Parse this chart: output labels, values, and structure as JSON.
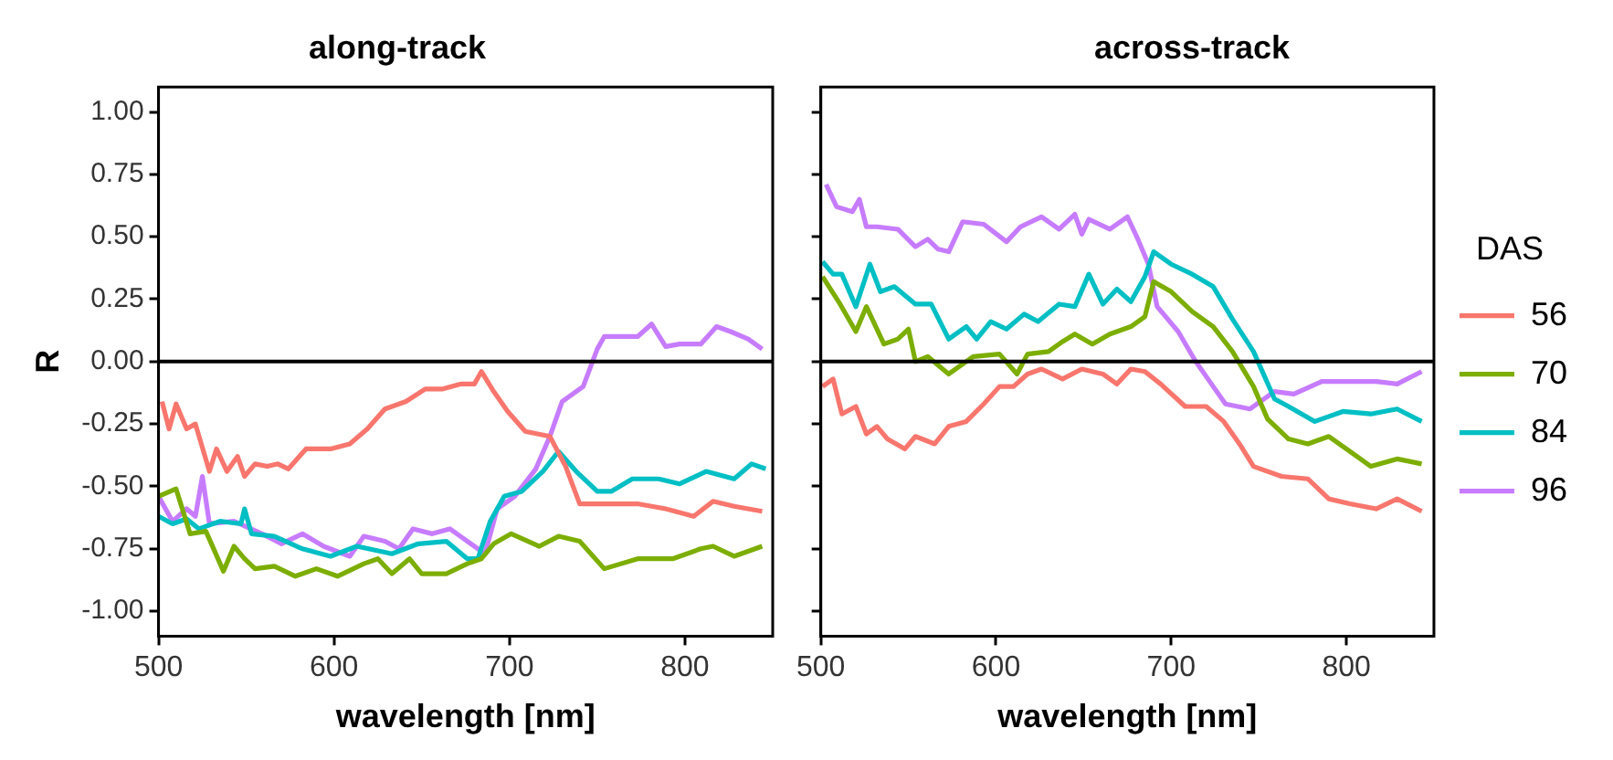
{
  "chart_data": [
    {
      "type": "line",
      "title": "along-track",
      "xlabel": "wavelength [nm]",
      "ylabel": "R",
      "xlim": [
        500,
        850
      ],
      "ylim": [
        -1.1,
        1.1
      ],
      "xticks": [
        500,
        600,
        700,
        800
      ],
      "yticks": [
        {
          "value": 1,
          "label": "1.00"
        },
        {
          "value": 0.75,
          "label": "0.75"
        },
        {
          "value": 0.5,
          "label": "0.50"
        },
        {
          "value": 0.25,
          "label": "0.25"
        },
        {
          "value": 0,
          "label": "0.00"
        },
        {
          "value": -0.25,
          "label": "-0.25"
        },
        {
          "value": -0.5,
          "label": "-0.50"
        },
        {
          "value": -0.75,
          "label": "-0.75"
        },
        {
          "value": -1,
          "label": "-1.00"
        }
      ],
      "grid": false,
      "legend": false,
      "line_style": "solid",
      "marker": "none",
      "ref_lines": [
        {
          "axis": "y",
          "value": 0,
          "color": "#000000"
        }
      ],
      "series": [
        {
          "color": "#f8766d",
          "x": [
            502,
            506,
            510,
            516,
            521,
            529,
            533,
            539,
            545,
            549,
            555,
            562,
            568,
            574,
            584,
            598,
            609,
            619,
            629,
            641,
            652,
            662,
            672,
            680,
            684,
            691,
            699,
            709,
            723,
            732,
            740,
            754,
            773,
            789,
            805,
            816,
            828,
            844
          ],
          "values": [
            -0.16,
            -0.27,
            -0.17,
            -0.27,
            -0.25,
            -0.44,
            -0.35,
            -0.44,
            -0.38,
            -0.46,
            -0.41,
            -0.42,
            -0.41,
            -0.43,
            -0.35,
            -0.35,
            -0.33,
            -0.27,
            -0.19,
            -0.16,
            -0.11,
            -0.11,
            -0.09,
            -0.09,
            -0.04,
            -0.12,
            -0.2,
            -0.28,
            -0.3,
            -0.42,
            -0.57,
            -0.57,
            -0.57,
            -0.59,
            -0.62,
            -0.56,
            -0.58,
            -0.6
          ]
        },
        {
          "color": "#7cae00",
          "x": [
            500,
            510,
            518,
            527,
            537,
            543,
            549,
            555,
            566,
            578,
            590,
            602,
            617,
            625,
            633,
            643,
            650,
            664,
            676,
            684,
            691,
            701,
            717,
            728,
            740,
            754,
            773,
            793,
            809,
            816,
            828,
            844
          ],
          "values": [
            -0.54,
            -0.51,
            -0.69,
            -0.68,
            -0.84,
            -0.74,
            -0.79,
            -0.83,
            -0.82,
            -0.86,
            -0.83,
            -0.86,
            -0.81,
            -0.79,
            -0.85,
            -0.79,
            -0.85,
            -0.85,
            -0.81,
            -0.79,
            -0.73,
            -0.69,
            -0.74,
            -0.7,
            -0.72,
            -0.83,
            -0.79,
            -0.79,
            -0.75,
            -0.74,
            -0.78,
            -0.74
          ]
        },
        {
          "color": "#00bfc4",
          "x": [
            500,
            508,
            516,
            523,
            535,
            547,
            549,
            553,
            566,
            582,
            598,
            613,
            633,
            648,
            664,
            676,
            682,
            689,
            697,
            707,
            719,
            728,
            738,
            750,
            758,
            770,
            785,
            797,
            812,
            828,
            838,
            846
          ],
          "values": [
            -0.62,
            -0.65,
            -0.63,
            -0.67,
            -0.64,
            -0.65,
            -0.59,
            -0.69,
            -0.7,
            -0.75,
            -0.78,
            -0.74,
            -0.77,
            -0.73,
            -0.72,
            -0.79,
            -0.79,
            -0.64,
            -0.54,
            -0.52,
            -0.44,
            -0.36,
            -0.44,
            -0.52,
            -0.52,
            -0.47,
            -0.47,
            -0.49,
            -0.44,
            -0.47,
            -0.41,
            -0.43
          ]
        },
        {
          "color": "#c77cff",
          "x": [
            500,
            508,
            516,
            521,
            525,
            529,
            543,
            559,
            570,
            582,
            594,
            609,
            617,
            629,
            637,
            645,
            656,
            666,
            676,
            686,
            693,
            703,
            715,
            723,
            730,
            742,
            750,
            754,
            764,
            773,
            781,
            789,
            797,
            809,
            818,
            826,
            836,
            844
          ],
          "values": [
            -0.54,
            -0.64,
            -0.59,
            -0.62,
            -0.46,
            -0.65,
            -0.64,
            -0.69,
            -0.73,
            -0.69,
            -0.74,
            -0.78,
            -0.7,
            -0.72,
            -0.75,
            -0.67,
            -0.69,
            -0.67,
            -0.72,
            -0.77,
            -0.59,
            -0.54,
            -0.43,
            -0.3,
            -0.16,
            -0.1,
            0.05,
            0.1,
            0.1,
            0.1,
            0.15,
            0.06,
            0.07,
            0.07,
            0.14,
            0.12,
            0.09,
            0.05
          ]
        }
      ]
    },
    {
      "type": "line",
      "title": "across-track",
      "xlabel": "wavelength [nm]",
      "legend_title": "DAS",
      "xlim": [
        500,
        850
      ],
      "ylim": [
        -1.1,
        1.1
      ],
      "xticks": [
        500,
        600,
        700,
        800
      ],
      "yticks": [
        {
          "value": 1,
          "label": null
        },
        {
          "value": 0.75,
          "label": null
        },
        {
          "value": 0.5,
          "label": null
        },
        {
          "value": 0.25,
          "label": null
        },
        {
          "value": 0,
          "label": null
        },
        {
          "value": -0.25,
          "label": null
        },
        {
          "value": -0.5,
          "label": null
        },
        {
          "value": -0.75,
          "label": null
        },
        {
          "value": -1,
          "label": null
        }
      ],
      "tick_labels": "x",
      "grid": false,
      "legend": "right",
      "line_style": "solid",
      "marker": "none",
      "ref_lines": [
        {
          "axis": "y",
          "value": 0,
          "color": "#000000"
        }
      ],
      "series": [
        {
          "name": "56",
          "color": "#f8766d",
          "x": [
            501,
            507,
            512,
            520,
            526,
            532,
            538,
            548,
            554,
            565,
            573,
            583,
            593,
            602,
            610,
            618,
            626,
            638,
            649,
            661,
            669,
            677,
            685,
            694,
            708,
            720,
            730,
            739,
            747,
            763,
            778,
            790,
            802,
            817,
            829,
            843
          ],
          "values": [
            -0.1,
            -0.07,
            -0.21,
            -0.18,
            -0.29,
            -0.26,
            -0.31,
            -0.35,
            -0.3,
            -0.33,
            -0.26,
            -0.24,
            -0.17,
            -0.1,
            -0.1,
            -0.05,
            -0.03,
            -0.07,
            -0.03,
            -0.05,
            -0.09,
            -0.03,
            -0.04,
            -0.09,
            -0.18,
            -0.18,
            -0.24,
            -0.33,
            -0.42,
            -0.46,
            -0.47,
            -0.55,
            -0.57,
            -0.59,
            -0.55,
            -0.6
          ]
        },
        {
          "name": "70",
          "color": "#7cae00",
          "x": [
            501,
            511,
            520,
            526,
            536,
            544,
            550,
            554,
            561,
            573,
            587,
            602,
            612,
            618,
            630,
            638,
            645,
            655,
            665,
            677,
            685,
            690,
            700,
            712,
            724,
            735,
            747,
            755,
            767,
            778,
            790,
            802,
            814,
            829,
            843
          ],
          "values": [
            0.34,
            0.23,
            0.12,
            0.22,
            0.07,
            0.09,
            0.13,
            0.0,
            0.02,
            -0.05,
            0.02,
            0.03,
            -0.05,
            0.03,
            0.04,
            0.08,
            0.11,
            0.07,
            0.11,
            0.14,
            0.18,
            0.32,
            0.28,
            0.2,
            0.14,
            0.04,
            -0.1,
            -0.23,
            -0.31,
            -0.33,
            -0.3,
            -0.36,
            -0.42,
            -0.39,
            -0.41
          ]
        },
        {
          "name": "84",
          "color": "#00bfc4",
          "x": [
            501,
            507,
            512,
            520,
            528,
            534,
            542,
            554,
            563,
            573,
            583,
            589,
            597,
            606,
            616,
            624,
            636,
            645,
            653,
            661,
            669,
            677,
            685,
            690,
            700,
            712,
            724,
            735,
            747,
            759,
            767,
            782,
            798,
            814,
            829,
            843
          ],
          "values": [
            0.4,
            0.35,
            0.35,
            0.22,
            0.39,
            0.28,
            0.3,
            0.23,
            0.23,
            0.09,
            0.14,
            0.09,
            0.16,
            0.13,
            0.19,
            0.16,
            0.23,
            0.22,
            0.35,
            0.23,
            0.29,
            0.24,
            0.34,
            0.44,
            0.39,
            0.35,
            0.3,
            0.17,
            0.04,
            -0.15,
            -0.18,
            -0.24,
            -0.2,
            -0.21,
            -0.19,
            -0.24
          ]
        },
        {
          "name": "96",
          "color": "#c77cff",
          "x": [
            503,
            509,
            518,
            522,
            526,
            532,
            544,
            554,
            561,
            567,
            573,
            581,
            593,
            606,
            614,
            626,
            636,
            645,
            649,
            653,
            665,
            675,
            681,
            687,
            692,
            704,
            714,
            724,
            731,
            745,
            759,
            770,
            786,
            802,
            817,
            829,
            843
          ],
          "values": [
            0.71,
            0.62,
            0.6,
            0.65,
            0.54,
            0.54,
            0.53,
            0.46,
            0.49,
            0.45,
            0.44,
            0.56,
            0.55,
            0.48,
            0.54,
            0.58,
            0.53,
            0.59,
            0.51,
            0.57,
            0.53,
            0.58,
            0.49,
            0.39,
            0.22,
            0.12,
            0.0,
            -0.1,
            -0.17,
            -0.19,
            -0.12,
            -0.13,
            -0.08,
            -0.08,
            -0.08,
            -0.09,
            -0.04
          ]
        }
      ]
    }
  ]
}
